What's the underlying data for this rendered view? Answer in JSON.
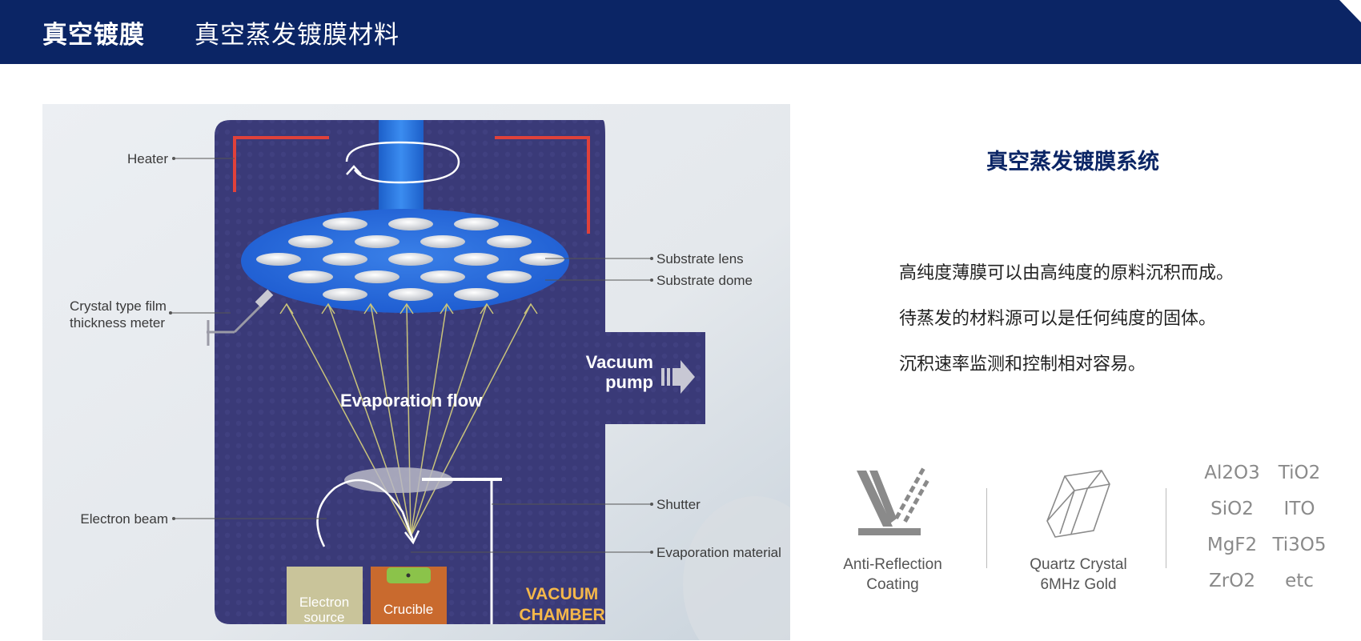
{
  "header": {
    "title": "真空镀膜",
    "subtitle": "真空蒸发镀膜材料"
  },
  "diagram": {
    "labels": {
      "heater": "Heater",
      "substrate_lens": "Substrate lens",
      "substrate_dome": "Substrate dome",
      "crystal_line1": "Crystal type film",
      "crystal_line2": "thickness meter",
      "vacuum_line1": "Vacuum",
      "vacuum_line2": "pump",
      "evaporation_flow": "Evaporation flow",
      "shutter": "Shutter",
      "electron_beam": "Electron beam",
      "evaporation_material": "Evaporation material",
      "electron_line1": "Electron",
      "electron_line2": "source",
      "crucible": "Crucible",
      "chamber_line1": "VACUUM",
      "chamber_line2": "CHAMBER"
    },
    "colors": {
      "chamber": "#3b3b78",
      "heater": "#e0413a",
      "flow_arrows": "#c9c37a",
      "chamber_label": "#f5b84a",
      "crucible": "#c96a2e",
      "electron_source": "#c9c49a",
      "material": "#8bc34a"
    }
  },
  "system": {
    "title": "真空蒸发镀膜系统",
    "lines": [
      "高纯度薄膜可以由高纯度的原料沉积而成。",
      "待蒸发的材料源可以是任何纯度的固体。",
      "沉积速率监测和控制相对容易。"
    ]
  },
  "features": {
    "anti_reflection": {
      "line1": "Anti-Reflection",
      "line2": "Coating",
      "icon": "anti-reflection-icon"
    },
    "quartz": {
      "line1": "Quartz Crystal",
      "line2": "6MHz Gold",
      "icon": "quartz-crystal-icon"
    },
    "materials": [
      "Al2O3",
      "TiO2",
      "SiO2",
      "ITO",
      "MgF2",
      "Ti3O5",
      "ZrO2",
      "etc"
    ]
  }
}
